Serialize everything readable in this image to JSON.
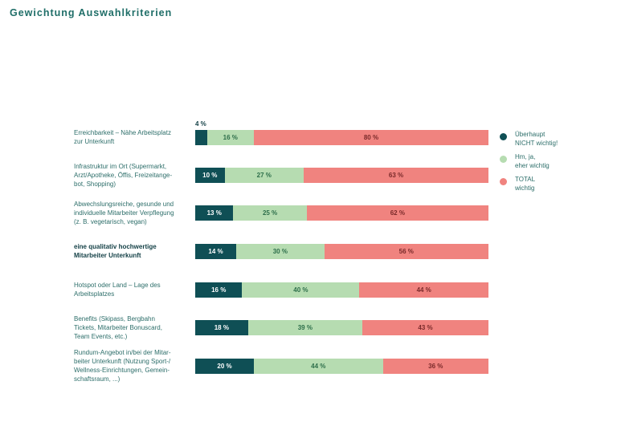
{
  "title": "Gewichtung Auswahlkriterien",
  "chart_data": {
    "type": "bar",
    "orientation": "horizontal",
    "stacked": true,
    "categories": [
      [
        "Erreichbarkeit – Nähe Arbeitsplatz",
        "zur Unterkunft"
      ],
      [
        "Infrastruktur im Ort (Supermarkt,",
        "Arzt/Apotheke, Öffis, Freizeitange-",
        "bot, Shopping)"
      ],
      [
        "Abwechslungsreiche, gesunde und",
        "individuelle Mitarbeiter Verpflegung",
        "(z. B. vegetarisch, vegan)"
      ],
      [
        "eine qualitativ hochwertige",
        "Mitarbeiter Unterkunft"
      ],
      [
        "Hotspot oder Land – Lage des",
        "Arbeitsplatzes"
      ],
      [
        "Benefits (Skipass, Bergbahn",
        "Tickets, Mitarbeiter Bonuscard,",
        "Team Events, etc.)"
      ],
      [
        "Rundum-Angebot in/bei der Mitar-",
        "beiter Unterkunft (Nutzung Sport-/",
        "Wellness-Einrichtungen, Gemein-",
        "schaftsraum, ...)"
      ]
    ],
    "highlighted_category_index": 3,
    "series": [
      {
        "name": "Überhaupt NICHT wichtig!",
        "legend_lines": [
          "Überhaupt",
          "NICHT wichtig!"
        ],
        "color": "#0f4f55",
        "text_color": "#ffffff",
        "values": [
          4,
          10,
          13,
          14,
          16,
          18,
          20
        ]
      },
      {
        "name": "Hm, ja, eher wichtig",
        "legend_lines": [
          "Hm, ja,",
          "eher wichtig"
        ],
        "color": "#b6dcb1",
        "text_color": "#2d6e4a",
        "values": [
          16,
          27,
          25,
          30,
          40,
          39,
          44
        ]
      },
      {
        "name": "TOTAL wichtig",
        "legend_lines": [
          "TOTAL",
          "wichtig"
        ],
        "color": "#f0837f",
        "text_color": "#7a2a2a",
        "values": [
          80,
          63,
          62,
          56,
          44,
          43,
          36
        ]
      }
    ],
    "value_suffix": " %",
    "xlim": [
      0,
      100
    ],
    "grid": false,
    "legend_position": "right"
  }
}
